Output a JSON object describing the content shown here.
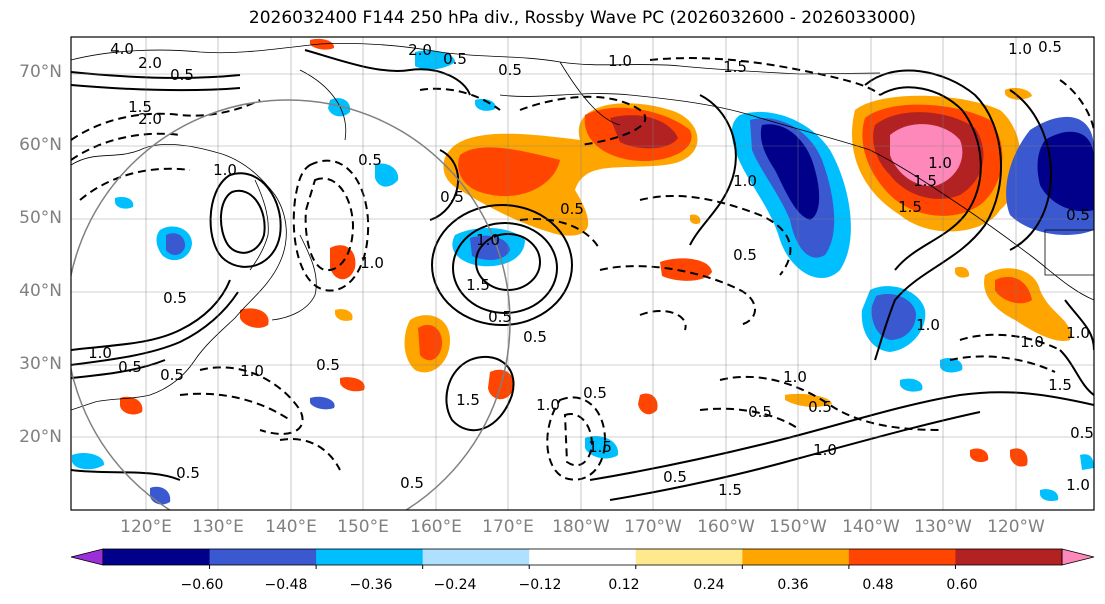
{
  "title": "2026032400 F144 250 hPa div., Rossby Wave PC (2026032600 - 2026033000)",
  "axis_color": "#808080",
  "lat_labels": [
    "70°N",
    "60°N",
    "50°N",
    "40°N",
    "30°N",
    "20°N"
  ],
  "lon_labels": [
    "120°E",
    "130°E",
    "140°E",
    "150°E",
    "160°E",
    "170°E",
    "180°W",
    "170°W",
    "160°W",
    "150°W",
    "140°W",
    "130°W",
    "120°W"
  ],
  "colorbar": {
    "tick_labels": [
      "−0.60",
      "−0.48",
      "−0.36",
      "−0.24",
      "−0.12",
      "0.12",
      "0.24",
      "0.36",
      "0.48",
      "0.60"
    ],
    "colors": [
      "#9b30d9",
      "#00008b",
      "#3a58cf",
      "#00bfff",
      "#aee0ff",
      "#ffffff",
      "#ffe98c",
      "#ffa500",
      "#ff4500",
      "#b22222",
      "#ff88bb"
    ]
  },
  "contour_labels": [
    "4.0",
    "2.0",
    "0.5",
    "1.5",
    "2.0",
    "1.0",
    "0.5",
    "0.5",
    "1.0",
    "0.5",
    "0.5",
    "1.5",
    "1.0",
    "0.5",
    "0.5",
    "1.0",
    "1.5",
    "0.5",
    "1.0",
    "0.5",
    "1.5",
    "1.0",
    "0.5",
    "1.0",
    "0.5",
    "2.0",
    "0.5",
    "1.5",
    "0.5",
    "1.0",
    "0.5",
    "1.0",
    "0.5",
    "0.5",
    "1.5",
    "1.0",
    "1.0",
    "1.5",
    "1.0",
    "1.5",
    "0.5",
    "1.0",
    "1.0",
    "0.5",
    "0.5",
    "1.0",
    "1.5",
    "1.0",
    "0.5",
    "0.5",
    "0.5"
  ]
}
